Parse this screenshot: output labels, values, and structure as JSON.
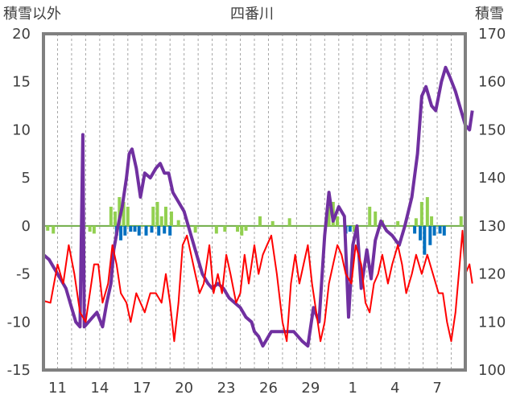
{
  "chart_data": {
    "type": "line",
    "title": "四番川",
    "left_axis_title": "積雪以外",
    "right_axis_title": "積雪",
    "left_ticks": [
      "20",
      "15",
      "10",
      "5",
      "0",
      "-5",
      "-10",
      "-15"
    ],
    "right_ticks": [
      "170",
      "160",
      "150",
      "140",
      "130",
      "120",
      "110",
      "100"
    ],
    "x_ticks": [
      "11",
      "14",
      "17",
      "20",
      "23",
      "26",
      "29",
      "1",
      "4",
      "7"
    ],
    "left_ylim": [
      -15,
      20
    ],
    "right_ylim": [
      100,
      170
    ],
    "x_range_days": [
      0,
      30
    ],
    "grid": "vertical dashed lines, one per day",
    "colors": {
      "snow_depth": "#7030A0",
      "temperature": "#FF0000",
      "precip_upper": "#92D050",
      "precip_lower": "#0070C0",
      "zero_line": "#70AD47",
      "frame": "#808080"
    },
    "series": [
      {
        "id": "snow_depth",
        "axis": "right",
        "points": [
          [
            0,
            124
          ],
          [
            0.4,
            123
          ],
          [
            0.8,
            121
          ],
          [
            1.2,
            119
          ],
          [
            1.6,
            117
          ],
          [
            2,
            113
          ],
          [
            2.3,
            110
          ],
          [
            2.6,
            109
          ],
          [
            2.8,
            149
          ],
          [
            2.9,
            109
          ],
          [
            3.2,
            110
          ],
          [
            3.5,
            111
          ],
          [
            3.8,
            112
          ],
          [
            4.2,
            109
          ],
          [
            4.5,
            114
          ],
          [
            4.8,
            118
          ],
          [
            5,
            125
          ],
          [
            5.3,
            130
          ],
          [
            5.6,
            134
          ],
          [
            5.9,
            140
          ],
          [
            6.1,
            145
          ],
          [
            6.3,
            146
          ],
          [
            6.6,
            142
          ],
          [
            6.9,
            136
          ],
          [
            7.2,
            141
          ],
          [
            7.6,
            140
          ],
          [
            8,
            142
          ],
          [
            8.3,
            143
          ],
          [
            8.6,
            141
          ],
          [
            8.9,
            141
          ],
          [
            9.2,
            137
          ],
          [
            9.6,
            135
          ],
          [
            10,
            133
          ],
          [
            10.3,
            130
          ],
          [
            10.6,
            127
          ],
          [
            11,
            123
          ],
          [
            11.3,
            120
          ],
          [
            11.7,
            118
          ],
          [
            12,
            117
          ],
          [
            12.4,
            118
          ],
          [
            12.8,
            117
          ],
          [
            13.2,
            115
          ],
          [
            13.6,
            114
          ],
          [
            14,
            113
          ],
          [
            14.4,
            111
          ],
          [
            14.8,
            110
          ],
          [
            15,
            108
          ],
          [
            15.3,
            107
          ],
          [
            15.6,
            105
          ],
          [
            16.2,
            108
          ],
          [
            16.8,
            108
          ],
          [
            17.3,
            108
          ],
          [
            17.8,
            108
          ],
          [
            18.4,
            106
          ],
          [
            18.8,
            105
          ],
          [
            19.2,
            113
          ],
          [
            19.6,
            110
          ],
          [
            20,
            128
          ],
          [
            20.3,
            137
          ],
          [
            20.6,
            131
          ],
          [
            21,
            134
          ],
          [
            21.4,
            132
          ],
          [
            21.7,
            111
          ],
          [
            22,
            126
          ],
          [
            22.3,
            130
          ],
          [
            22.6,
            117
          ],
          [
            23,
            125
          ],
          [
            23.3,
            119
          ],
          [
            23.6,
            127
          ],
          [
            24,
            131
          ],
          [
            24.4,
            129
          ],
          [
            24.8,
            128
          ],
          [
            25.3,
            126
          ],
          [
            25.7,
            130
          ],
          [
            26.2,
            136
          ],
          [
            26.6,
            145
          ],
          [
            26.9,
            157
          ],
          [
            27.2,
            159
          ],
          [
            27.6,
            155
          ],
          [
            27.9,
            154
          ],
          [
            28.3,
            160
          ],
          [
            28.6,
            163
          ],
          [
            28.9,
            161
          ],
          [
            29.3,
            158
          ],
          [
            29.6,
            155
          ],
          [
            30,
            151
          ],
          [
            30.3,
            150
          ],
          [
            30.5,
            154
          ]
        ]
      },
      {
        "id": "temperature",
        "axis": "left",
        "points": [
          [
            0,
            -7.8
          ],
          [
            0.5,
            -8
          ],
          [
            1,
            -4
          ],
          [
            1.4,
            -6
          ],
          [
            1.8,
            -2
          ],
          [
            2.2,
            -5
          ],
          [
            2.6,
            -9
          ],
          [
            3,
            -10
          ],
          [
            3.4,
            -6
          ],
          [
            3.6,
            -4
          ],
          [
            3.9,
            -4
          ],
          [
            4.2,
            -8
          ],
          [
            4.6,
            -6
          ],
          [
            4.9,
            -2
          ],
          [
            5.2,
            -4
          ],
          [
            5.5,
            -7
          ],
          [
            5.9,
            -8
          ],
          [
            6.2,
            -10
          ],
          [
            6.6,
            -7
          ],
          [
            6.9,
            -8
          ],
          [
            7.2,
            -9
          ],
          [
            7.6,
            -7
          ],
          [
            8,
            -7
          ],
          [
            8.4,
            -8
          ],
          [
            8.7,
            -5
          ],
          [
            9,
            -8
          ],
          [
            9.3,
            -12
          ],
          [
            9.6,
            -8
          ],
          [
            9.9,
            -2
          ],
          [
            10.2,
            -1
          ],
          [
            10.5,
            -3
          ],
          [
            10.8,
            -5
          ],
          [
            11.1,
            -7
          ],
          [
            11.4,
            -6
          ],
          [
            11.8,
            -2
          ],
          [
            12.1,
            -7
          ],
          [
            12.4,
            -5
          ],
          [
            12.7,
            -7
          ],
          [
            13,
            -3
          ],
          [
            13.3,
            -5
          ],
          [
            13.7,
            -8
          ],
          [
            14,
            -7
          ],
          [
            14.3,
            -3
          ],
          [
            14.6,
            -6
          ],
          [
            15,
            -2
          ],
          [
            15.3,
            -5
          ],
          [
            15.6,
            -3
          ],
          [
            15.9,
            -2
          ],
          [
            16.2,
            -1
          ],
          [
            16.6,
            -5
          ],
          [
            17,
            -10
          ],
          [
            17.3,
            -12
          ],
          [
            17.6,
            -6
          ],
          [
            17.9,
            -3
          ],
          [
            18.2,
            -6
          ],
          [
            18.5,
            -4
          ],
          [
            18.8,
            -2
          ],
          [
            19.1,
            -6
          ],
          [
            19.4,
            -9
          ],
          [
            19.7,
            -12
          ],
          [
            20,
            -10
          ],
          [
            20.3,
            -6
          ],
          [
            20.6,
            -4
          ],
          [
            20.9,
            -2
          ],
          [
            21.2,
            -3
          ],
          [
            21.5,
            -5
          ],
          [
            21.9,
            -6
          ],
          [
            22.2,
            -2
          ],
          [
            22.6,
            -4
          ],
          [
            22.9,
            -8
          ],
          [
            23.2,
            -9
          ],
          [
            23.5,
            -6
          ],
          [
            23.8,
            -5
          ],
          [
            24.1,
            -3
          ],
          [
            24.5,
            -6
          ],
          [
            24.8,
            -4
          ],
          [
            25.2,
            -2
          ],
          [
            25.5,
            -4
          ],
          [
            25.8,
            -7
          ],
          [
            26.2,
            -5
          ],
          [
            26.5,
            -3
          ],
          [
            26.9,
            -5
          ],
          [
            27.3,
            -3
          ],
          [
            27.7,
            -5
          ],
          [
            28.1,
            -7
          ],
          [
            28.4,
            -7
          ],
          [
            28.7,
            -10
          ],
          [
            29,
            -12
          ],
          [
            29.3,
            -9
          ],
          [
            29.6,
            -4
          ],
          [
            29.8,
            -0.5
          ],
          [
            30,
            -5
          ],
          [
            30.3,
            -4
          ],
          [
            30.5,
            -6
          ]
        ]
      },
      {
        "id": "precip_upper",
        "axis": "left",
        "bars": [
          [
            0.3,
            -0.5
          ],
          [
            0.7,
            -0.8
          ],
          [
            3.3,
            -0.6
          ],
          [
            3.6,
            -0.8
          ],
          [
            4.8,
            2
          ],
          [
            5.1,
            1.5
          ],
          [
            5.4,
            3
          ],
          [
            5.7,
            2.5
          ],
          [
            6,
            2
          ],
          [
            7.8,
            2
          ],
          [
            8.1,
            2.5
          ],
          [
            8.4,
            1
          ],
          [
            8.7,
            2
          ],
          [
            9.1,
            1.5
          ],
          [
            9.6,
            0.6
          ],
          [
            10.8,
            -0.7
          ],
          [
            12.3,
            -0.8
          ],
          [
            12.9,
            -0.6
          ],
          [
            13.8,
            -0.6
          ],
          [
            14.1,
            -1
          ],
          [
            14.4,
            -0.5
          ],
          [
            15.4,
            1
          ],
          [
            16.3,
            0.5
          ],
          [
            17.5,
            0.8
          ],
          [
            20.3,
            2
          ],
          [
            20.6,
            2.5
          ],
          [
            20.9,
            1
          ],
          [
            22.1,
            -0.6
          ],
          [
            23.2,
            2
          ],
          [
            23.6,
            1.5
          ],
          [
            24.1,
            0.6
          ],
          [
            25.2,
            0.5
          ],
          [
            26.5,
            0.8
          ],
          [
            26.9,
            2.5
          ],
          [
            27.3,
            3
          ],
          [
            27.6,
            1
          ],
          [
            29.7,
            1
          ],
          [
            30,
            1
          ]
        ]
      },
      {
        "id": "precip_lower",
        "axis": "left",
        "bars": [
          [
            5.2,
            -1
          ],
          [
            5.5,
            -1.5
          ],
          [
            5.8,
            -1
          ],
          [
            6.2,
            -0.6
          ],
          [
            6.5,
            -0.6
          ],
          [
            6.8,
            -1
          ],
          [
            7.3,
            -1
          ],
          [
            7.7,
            -0.7
          ],
          [
            8.2,
            -1
          ],
          [
            8.6,
            -0.8
          ],
          [
            9,
            -1
          ],
          [
            21.5,
            -0.8
          ],
          [
            21.8,
            -0.6
          ],
          [
            22.3,
            -0.6
          ],
          [
            26.4,
            -0.8
          ],
          [
            26.8,
            -1.5
          ],
          [
            27.1,
            -3
          ],
          [
            27.5,
            -2
          ],
          [
            27.8,
            -1
          ],
          [
            28.2,
            -0.8
          ],
          [
            28.5,
            -1
          ]
        ]
      }
    ]
  }
}
